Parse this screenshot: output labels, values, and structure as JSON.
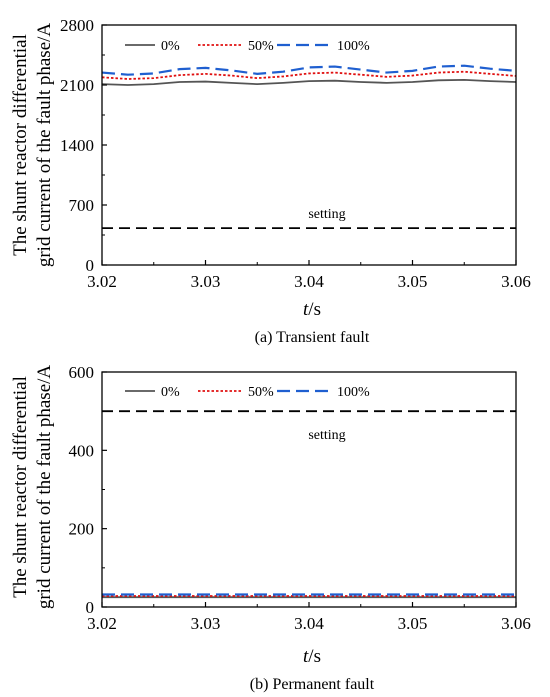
{
  "chart_data": [
    {
      "type": "line",
      "caption_prefix": "(a)",
      "caption_text": "Transient fault",
      "xlabel_italic": "t",
      "xlabel_unit": "/s",
      "ylabel_line1": "The shunt reactor differential",
      "ylabel_line2": "grid current of the fault phase/A",
      "xlim": [
        3.02,
        3.06
      ],
      "ylim": [
        0,
        2800
      ],
      "xticks": [
        "3.02",
        "3.03",
        "3.04",
        "3.05",
        "3.06"
      ],
      "yticks": [
        "0",
        "700",
        "1400",
        "2100",
        "2800"
      ],
      "grid": false,
      "legend_position": "top-left",
      "series": [
        {
          "name": "0%",
          "color": "#555555",
          "dash": "solid",
          "points": [
            [
              3.02,
              2110
            ],
            [
              3.0225,
              2100
            ],
            [
              3.025,
              2110
            ],
            [
              3.0275,
              2135
            ],
            [
              3.03,
              2140
            ],
            [
              3.0325,
              2125
            ],
            [
              3.035,
              2110
            ],
            [
              3.0375,
              2125
            ],
            [
              3.04,
              2145
            ],
            [
              3.0425,
              2150
            ],
            [
              3.045,
              2135
            ],
            [
              3.0475,
              2125
            ],
            [
              3.05,
              2135
            ],
            [
              3.0525,
              2155
            ],
            [
              3.055,
              2160
            ],
            [
              3.0575,
              2145
            ],
            [
              3.06,
              2135
            ]
          ]
        },
        {
          "name": "50%",
          "color": "#e01010",
          "dash": "dotted",
          "points": [
            [
              3.02,
              2190
            ],
            [
              3.0225,
              2170
            ],
            [
              3.025,
              2180
            ],
            [
              3.0275,
              2215
            ],
            [
              3.03,
              2230
            ],
            [
              3.0325,
              2210
            ],
            [
              3.035,
              2180
            ],
            [
              3.0375,
              2200
            ],
            [
              3.04,
              2235
            ],
            [
              3.0425,
              2245
            ],
            [
              3.045,
              2220
            ],
            [
              3.0475,
              2195
            ],
            [
              3.05,
              2210
            ],
            [
              3.0525,
              2245
            ],
            [
              3.055,
              2255
            ],
            [
              3.0575,
              2230
            ],
            [
              3.06,
              2205
            ]
          ]
        },
        {
          "name": "100%",
          "color": "#1f5fd0",
          "dash": "dashed",
          "points": [
            [
              3.02,
              2245
            ],
            [
              3.0225,
              2220
            ],
            [
              3.025,
              2235
            ],
            [
              3.0275,
              2285
            ],
            [
              3.03,
              2300
            ],
            [
              3.0325,
              2270
            ],
            [
              3.035,
              2230
            ],
            [
              3.0375,
              2255
            ],
            [
              3.04,
              2305
            ],
            [
              3.0425,
              2315
            ],
            [
              3.045,
              2280
            ],
            [
              3.0475,
              2245
            ],
            [
              3.05,
              2265
            ],
            [
              3.0525,
              2315
            ],
            [
              3.055,
              2325
            ],
            [
              3.0575,
              2290
            ],
            [
              3.06,
              2265
            ]
          ]
        }
      ],
      "setting": {
        "label": "setting",
        "value": 430
      }
    },
    {
      "type": "line",
      "caption_prefix": "(b)",
      "caption_text": "Permanent fault",
      "xlabel_italic": "t",
      "xlabel_unit": "/s",
      "ylabel_line1": "The shunt reactor differential",
      "ylabel_line2": "grid current of the fault phase/A",
      "xlim": [
        3.02,
        3.06
      ],
      "ylim": [
        0,
        600
      ],
      "xticks": [
        "3.02",
        "3.03",
        "3.04",
        "3.05",
        "3.06"
      ],
      "yticks": [
        "0",
        "200",
        "400",
        "600"
      ],
      "grid": false,
      "legend_position": "top-left",
      "series": [
        {
          "name": "0%",
          "color": "#555555",
          "dash": "solid",
          "points": [
            [
              3.02,
              25
            ],
            [
              3.03,
              25
            ],
            [
              3.04,
              25
            ],
            [
              3.05,
              25
            ],
            [
              3.06,
              25
            ]
          ]
        },
        {
          "name": "50%",
          "color": "#e01010",
          "dash": "dotted",
          "points": [
            [
              3.02,
              28
            ],
            [
              3.03,
              28
            ],
            [
              3.04,
              28
            ],
            [
              3.05,
              28
            ],
            [
              3.06,
              28
            ]
          ]
        },
        {
          "name": "100%",
          "color": "#1f5fd0",
          "dash": "dashed",
          "points": [
            [
              3.02,
              32
            ],
            [
              3.03,
              32
            ],
            [
              3.04,
              32
            ],
            [
              3.05,
              32
            ],
            [
              3.06,
              32
            ]
          ]
        }
      ],
      "setting": {
        "label": "setting",
        "value": 500
      }
    }
  ]
}
